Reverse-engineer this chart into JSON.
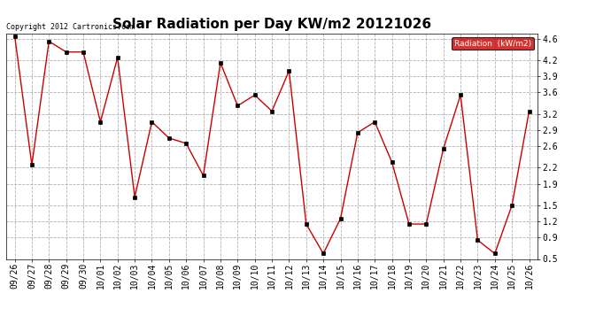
{
  "title": "Solar Radiation per Day KW/m2 20121026",
  "copyright_text": "Copyright 2012 Cartronics.com",
  "legend_label": "Radiation  (kW/m2)",
  "dates": [
    "09/26",
    "09/27",
    "09/28",
    "09/29",
    "09/30",
    "10/01",
    "10/02",
    "10/03",
    "10/04",
    "10/05",
    "10/06",
    "10/07",
    "10/08",
    "10/09",
    "10/10",
    "10/11",
    "10/12",
    "10/13",
    "10/14",
    "10/15",
    "10/16",
    "10/17",
    "10/18",
    "10/19",
    "10/20",
    "10/21",
    "10/22",
    "10/23",
    "10/24",
    "10/25",
    "10/26"
  ],
  "values": [
    4.65,
    2.25,
    4.55,
    4.35,
    4.35,
    3.05,
    4.25,
    1.65,
    3.05,
    2.75,
    2.65,
    2.05,
    4.15,
    3.35,
    3.55,
    3.25,
    4.0,
    1.15,
    0.6,
    1.25,
    2.85,
    3.05,
    2.3,
    1.15,
    1.15,
    2.55,
    3.55,
    0.85,
    0.6,
    1.5,
    3.25
  ],
  "line_color": "#cc0000",
  "marker_color": "#000000",
  "background_color": "#ffffff",
  "grid_color": "#aaaaaa",
  "ylim": [
    0.5,
    4.7
  ],
  "yticks": [
    0.5,
    0.9,
    1.2,
    1.5,
    1.9,
    2.2,
    2.6,
    2.9,
    3.2,
    3.6,
    3.9,
    4.2,
    4.6
  ],
  "legend_bg": "#cc0000",
  "legend_text_color": "#ffffff",
  "title_fontsize": 11,
  "tick_fontsize": 7,
  "copyright_fontsize": 6
}
